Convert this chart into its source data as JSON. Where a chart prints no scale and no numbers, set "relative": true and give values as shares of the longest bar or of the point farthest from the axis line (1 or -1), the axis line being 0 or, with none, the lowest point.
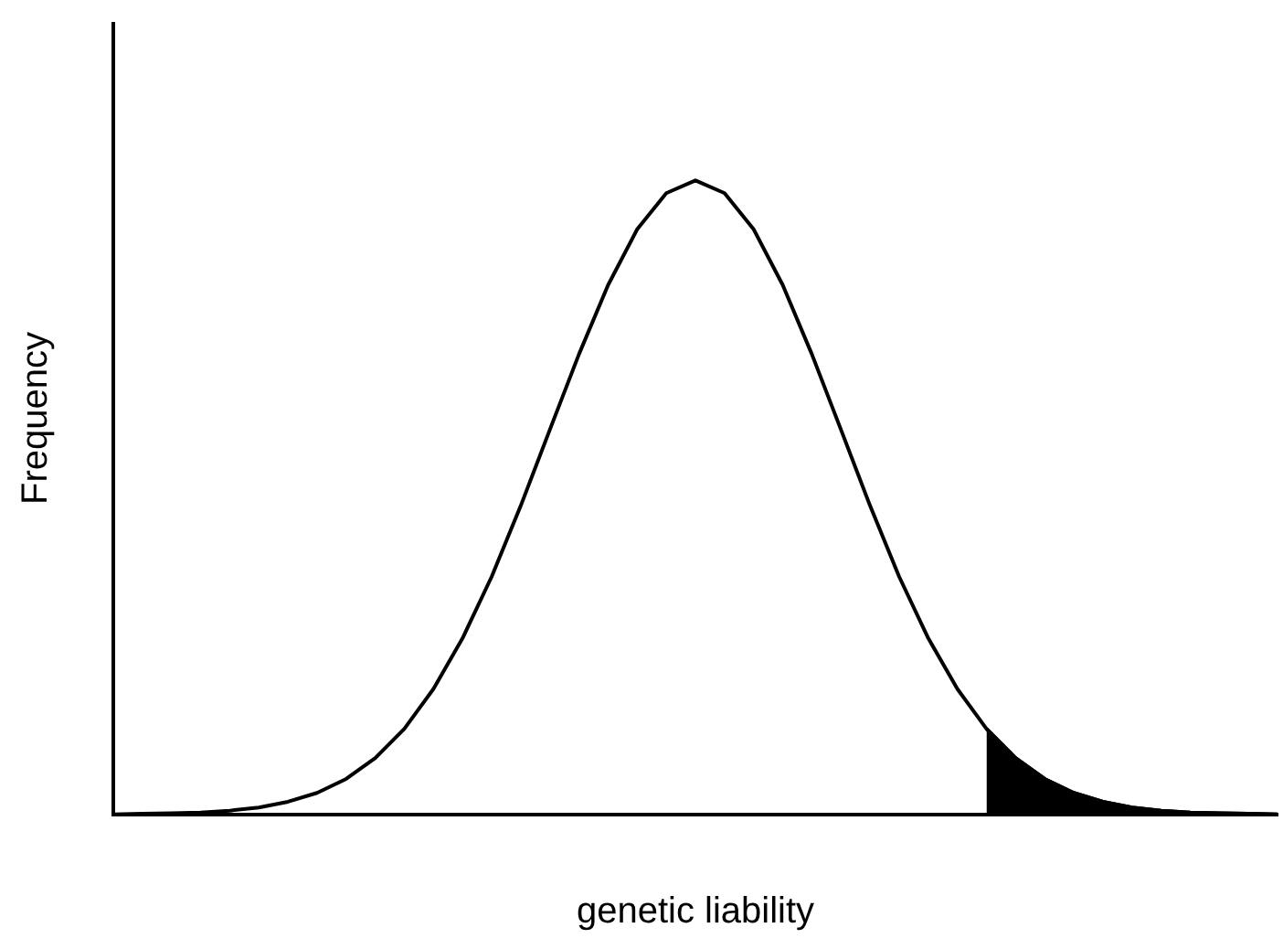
{
  "chart_data": {
    "type": "line",
    "xlabel": "genetic liability",
    "ylabel": "Frequency",
    "relative": true,
    "legend": false,
    "grid": false,
    "marker": "none",
    "categories": [
      null,
      null,
      null,
      null,
      null,
      null,
      null,
      null,
      null,
      null,
      null,
      null,
      null,
      null,
      null,
      null,
      null,
      null,
      null,
      null,
      null,
      null,
      null,
      null,
      null,
      null,
      null,
      null,
      null,
      null,
      null,
      null,
      null,
      null,
      null,
      null,
      null,
      null,
      null,
      null,
      null
    ],
    "series": [
      {
        "type": "line",
        "color": "#000000",
        "values": [
          0,
          0.001,
          0.002,
          0.003,
          0.006,
          0.011,
          0.02,
          0.034,
          0.056,
          0.089,
          0.135,
          0.198,
          0.278,
          0.375,
          0.487,
          0.607,
          0.726,
          0.835,
          0.923,
          0.98,
          1,
          0.98,
          0.923,
          0.835,
          0.726,
          0.607,
          0.487,
          0.375,
          0.278,
          0.198,
          0.135,
          0.089,
          0.056,
          0.034,
          0.02,
          0.011,
          0.006,
          0.003,
          0.002,
          0.001,
          0
        ]
      },
      {
        "type": "area",
        "color": "#000000",
        "values": [
          null,
          null,
          null,
          null,
          null,
          null,
          null,
          null,
          null,
          null,
          null,
          null,
          null,
          null,
          null,
          null,
          null,
          null,
          null,
          null,
          null,
          null,
          null,
          null,
          null,
          null,
          null,
          null,
          null,
          null,
          0.135,
          0.089,
          0.056,
          0.034,
          0.02,
          0.011,
          0.006,
          0.003,
          0.002,
          0.001,
          0
        ]
      }
    ]
  }
}
